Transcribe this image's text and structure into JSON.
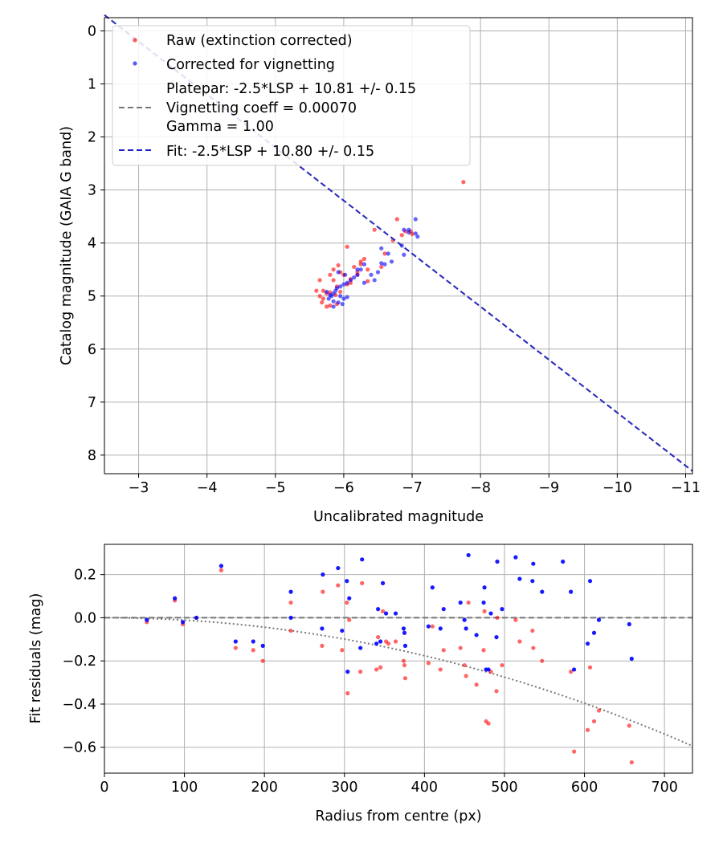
{
  "colors": {
    "raw": "#ff0000",
    "corrected": "#0000ff",
    "fit": "#2222cc",
    "reference": "#777777",
    "grid": "#b0b0b0"
  },
  "chart_data": [
    {
      "type": "scatter",
      "xlabel": "Uncalibrated magnitude",
      "ylabel": "Catalog magnitude (GAIA G band)",
      "xlim": [
        -2.5,
        -11.1
      ],
      "ylim": [
        8.35,
        -0.25
      ],
      "x_ticks": [
        -3,
        -4,
        -5,
        -6,
        -7,
        -8,
        -9,
        -10,
        -11
      ],
      "x_tick_labels": [
        "−3",
        "−4",
        "−5",
        "−6",
        "−7",
        "−8",
        "−9",
        "−10",
        "−11"
      ],
      "y_ticks": [
        0,
        1,
        2,
        3,
        4,
        5,
        6,
        7,
        8
      ],
      "y_tick_labels": [
        "0",
        "1",
        "2",
        "3",
        "4",
        "5",
        "6",
        "7",
        "8"
      ],
      "grid": true,
      "legend_position": "top-left",
      "legend": [
        {
          "marker": "dot",
          "color": "#ff0000",
          "lines": [
            "Raw (extinction corrected)"
          ]
        },
        {
          "marker": "dot",
          "color": "#0000ff",
          "lines": [
            "Corrected for vignetting"
          ]
        },
        {
          "marker": "dashed-line",
          "color": "#777777",
          "lines": [
            "Platepar: -2.5*LSP + 10.81 +/- 0.15",
            "Vignetting coeff = 0.00070",
            "Gamma = 1.00"
          ]
        },
        {
          "marker": "dashed-line",
          "color": "#2222cc",
          "lines": [
            "Fit: -2.5*LSP + 10.80 +/- 0.15"
          ]
        }
      ],
      "series": [
        {
          "name": "Raw (extinction corrected)",
          "color": "#ff0000",
          "points": [
            [
              -7.75,
              2.85
            ],
            [
              -6.45,
              3.75
            ],
            [
              -6.78,
              3.55
            ],
            [
              -6.05,
              4.07
            ],
            [
              -6.72,
              3.95
            ],
            [
              -6.25,
              4.35
            ],
            [
              -6.3,
              4.3
            ],
            [
              -6.6,
              4.2
            ],
            [
              -6.15,
              4.45
            ],
            [
              -6.35,
              4.5
            ],
            [
              -5.92,
              4.42
            ],
            [
              -5.85,
              4.5
            ],
            [
              -5.95,
              4.55
            ],
            [
              -5.8,
              4.6
            ],
            [
              -6.0,
              4.6
            ],
            [
              -5.65,
              4.7
            ],
            [
              -5.85,
              4.7
            ],
            [
              -6.05,
              4.78
            ],
            [
              -6.1,
              4.75
            ],
            [
              -5.9,
              4.82
            ],
            [
              -5.7,
              4.9
            ],
            [
              -5.6,
              4.9
            ],
            [
              -5.75,
              4.95
            ],
            [
              -5.8,
              4.93
            ],
            [
              -5.65,
              5.0
            ],
            [
              -5.7,
              5.05
            ],
            [
              -5.68,
              5.12
            ],
            [
              -5.75,
              5.2
            ],
            [
              -5.8,
              5.18
            ],
            [
              -5.9,
              5.15
            ],
            [
              -6.2,
              4.55
            ],
            [
              -6.85,
              3.85
            ],
            [
              -6.9,
              3.78
            ],
            [
              -6.98,
              3.78
            ],
            [
              -7.0,
              3.83
            ],
            [
              -6.25,
              4.4
            ],
            [
              -5.95,
              4.92
            ],
            [
              -6.2,
              4.6
            ],
            [
              -6.35,
              4.72
            ],
            [
              -6.1,
              4.68
            ],
            [
              -6.55,
              4.45
            ],
            [
              -5.88,
              4.98
            ]
          ]
        },
        {
          "name": "Corrected for vignetting",
          "color": "#0000ff",
          "points": [
            [
              -7.05,
              3.55
            ],
            [
              -6.88,
              3.75
            ],
            [
              -6.95,
              3.8
            ],
            [
              -7.05,
              3.82
            ],
            [
              -7.08,
              3.88
            ],
            [
              -6.85,
              4.05
            ],
            [
              -6.88,
              4.22
            ],
            [
              -6.55,
              4.1
            ],
            [
              -6.65,
              4.2
            ],
            [
              -6.7,
              4.35
            ],
            [
              -6.6,
              4.4
            ],
            [
              -6.5,
              4.55
            ],
            [
              -6.4,
              4.6
            ],
            [
              -6.3,
              4.4
            ],
            [
              -6.25,
              4.5
            ],
            [
              -6.2,
              4.6
            ],
            [
              -6.15,
              4.65
            ],
            [
              -6.1,
              4.7
            ],
            [
              -6.05,
              4.75
            ],
            [
              -6.0,
              4.78
            ],
            [
              -5.95,
              4.82
            ],
            [
              -5.9,
              4.85
            ],
            [
              -5.88,
              4.9
            ],
            [
              -5.85,
              4.95
            ],
            [
              -5.82,
              5.0
            ],
            [
              -5.8,
              4.98
            ],
            [
              -5.95,
              5.0
            ],
            [
              -6.0,
              5.05
            ],
            [
              -5.85,
              5.1
            ],
            [
              -5.92,
              5.12
            ],
            [
              -5.98,
              5.15
            ],
            [
              -5.85,
              5.2
            ],
            [
              -5.78,
              5.05
            ],
            [
              -6.02,
              4.6
            ],
            [
              -5.92,
              4.55
            ],
            [
              -6.3,
              4.75
            ],
            [
              -6.45,
              4.7
            ],
            [
              -6.2,
              4.5
            ],
            [
              -6.05,
              5.02
            ],
            [
              -5.75,
              4.92
            ],
            [
              -6.55,
              4.38
            ],
            [
              -6.95,
              3.75
            ]
          ]
        },
        {
          "name": "Fit",
          "kind": "line",
          "color": "#2222cc",
          "slope": -1.0,
          "intercept": -2.8,
          "x_range": [
            -2.5,
            -11.1
          ]
        }
      ]
    },
    {
      "type": "scatter",
      "xlabel": "Radius from centre (px)",
      "ylabel": "Fit residuals (mag)",
      "xlim": [
        0,
        735
      ],
      "ylim": [
        -0.72,
        0.34
      ],
      "x_ticks": [
        0,
        100,
        200,
        300,
        400,
        500,
        600,
        700
      ],
      "x_tick_labels": [
        "0",
        "100",
        "200",
        "300",
        "400",
        "500",
        "600",
        "700"
      ],
      "y_ticks": [
        0.2,
        0.0,
        -0.2,
        -0.4,
        -0.6
      ],
      "y_tick_labels": [
        "0.2",
        "0.0",
        "−0.2",
        "−0.4",
        "−0.6"
      ],
      "grid": true,
      "reference_line": {
        "y": 0.0,
        "color": "#777777",
        "style": "dashed"
      },
      "vignetting_curve": {
        "color": "#777777",
        "style": "dotted",
        "coeff": 0.0007,
        "scale": 2.3e-07
      },
      "series": [
        {
          "name": "Raw (extinction corrected)",
          "color": "#ff0000",
          "points": [
            [
              53,
              -0.02
            ],
            [
              88,
              0.08
            ],
            [
              98,
              -0.03
            ],
            [
              115,
              0.0
            ],
            [
              146,
              0.22
            ],
            [
              164,
              -0.14
            ],
            [
              186,
              -0.15
            ],
            [
              198,
              -0.2
            ],
            [
              233,
              0.07
            ],
            [
              233,
              -0.06
            ],
            [
              272,
              -0.13
            ],
            [
              273,
              0.12
            ],
            [
              292,
              0.15
            ],
            [
              297,
              -0.15
            ],
            [
              303,
              0.07
            ],
            [
              304,
              -0.35
            ],
            [
              306,
              -0.01
            ],
            [
              320,
              -0.25
            ],
            [
              322,
              0.16
            ],
            [
              340,
              -0.24
            ],
            [
              342,
              -0.09
            ],
            [
              345,
              -0.23
            ],
            [
              348,
              0.03
            ],
            [
              352,
              -0.11
            ],
            [
              355,
              -0.12
            ],
            [
              364,
              -0.11
            ],
            [
              374,
              -0.2
            ],
            [
              375,
              -0.22
            ],
            [
              376,
              -0.28
            ],
            [
              405,
              -0.21
            ],
            [
              410,
              -0.04
            ],
            [
              420,
              -0.24
            ],
            [
              424,
              -0.15
            ],
            [
              445,
              -0.14
            ],
            [
              450,
              -0.22
            ],
            [
              452,
              -0.27
            ],
            [
              455,
              0.07
            ],
            [
              465,
              -0.31
            ],
            [
              474,
              -0.15
            ],
            [
              475,
              0.03
            ],
            [
              477,
              -0.48
            ],
            [
              480,
              -0.49
            ],
            [
              483,
              -0.25
            ],
            [
              490,
              -0.34
            ],
            [
              491,
              0.0
            ],
            [
              497,
              -0.22
            ],
            [
              514,
              -0.01
            ],
            [
              519,
              -0.11
            ],
            [
              535,
              -0.06
            ],
            [
              536,
              -0.14
            ],
            [
              547,
              -0.2
            ],
            [
              583,
              -0.25
            ],
            [
              587,
              -0.62
            ],
            [
              604,
              -0.52
            ],
            [
              607,
              -0.23
            ],
            [
              612,
              -0.48
            ],
            [
              618,
              -0.43
            ],
            [
              656,
              -0.5
            ],
            [
              659,
              -0.67
            ]
          ]
        },
        {
          "name": "Corrected for vignetting",
          "color": "#0000ff",
          "points": [
            [
              53,
              -0.01
            ],
            [
              88,
              0.09
            ],
            [
              98,
              -0.02
            ],
            [
              115,
              0.0
            ],
            [
              146,
              0.24
            ],
            [
              164,
              -0.11
            ],
            [
              186,
              -0.11
            ],
            [
              198,
              -0.13
            ],
            [
              233,
              0.12
            ],
            [
              233,
              -0.0
            ],
            [
              272,
              -0.05
            ],
            [
              273,
              0.2
            ],
            [
              292,
              0.23
            ],
            [
              297,
              -0.06
            ],
            [
              303,
              0.17
            ],
            [
              304,
              -0.25
            ],
            [
              306,
              0.09
            ],
            [
              320,
              -0.14
            ],
            [
              322,
              0.27
            ],
            [
              340,
              -0.12
            ],
            [
              342,
              0.04
            ],
            [
              345,
              -0.11
            ],
            [
              348,
              0.16
            ],
            [
              352,
              0.02
            ],
            [
              364,
              0.02
            ],
            [
              374,
              -0.05
            ],
            [
              375,
              -0.07
            ],
            [
              376,
              -0.13
            ],
            [
              410,
              0.14
            ],
            [
              405,
              -0.04
            ],
            [
              420,
              -0.05
            ],
            [
              424,
              0.04
            ],
            [
              445,
              0.07
            ],
            [
              450,
              -0.01
            ],
            [
              452,
              -0.05
            ],
            [
              455,
              0.29
            ],
            [
              465,
              -0.08
            ],
            [
              474,
              0.07
            ],
            [
              475,
              0.14
            ],
            [
              477,
              -0.24
            ],
            [
              480,
              -0.24
            ],
            [
              483,
              0.02
            ],
            [
              490,
              -0.09
            ],
            [
              491,
              0.26
            ],
            [
              497,
              0.04
            ],
            [
              514,
              0.28
            ],
            [
              519,
              0.18
            ],
            [
              535,
              0.17
            ],
            [
              536,
              0.25
            ],
            [
              547,
              0.12
            ],
            [
              573,
              0.26
            ],
            [
              583,
              0.12
            ],
            [
              587,
              -0.24
            ],
            [
              604,
              -0.12
            ],
            [
              607,
              0.17
            ],
            [
              612,
              -0.07
            ],
            [
              618,
              -0.01
            ],
            [
              656,
              -0.03
            ],
            [
              659,
              -0.19
            ]
          ]
        }
      ]
    }
  ]
}
